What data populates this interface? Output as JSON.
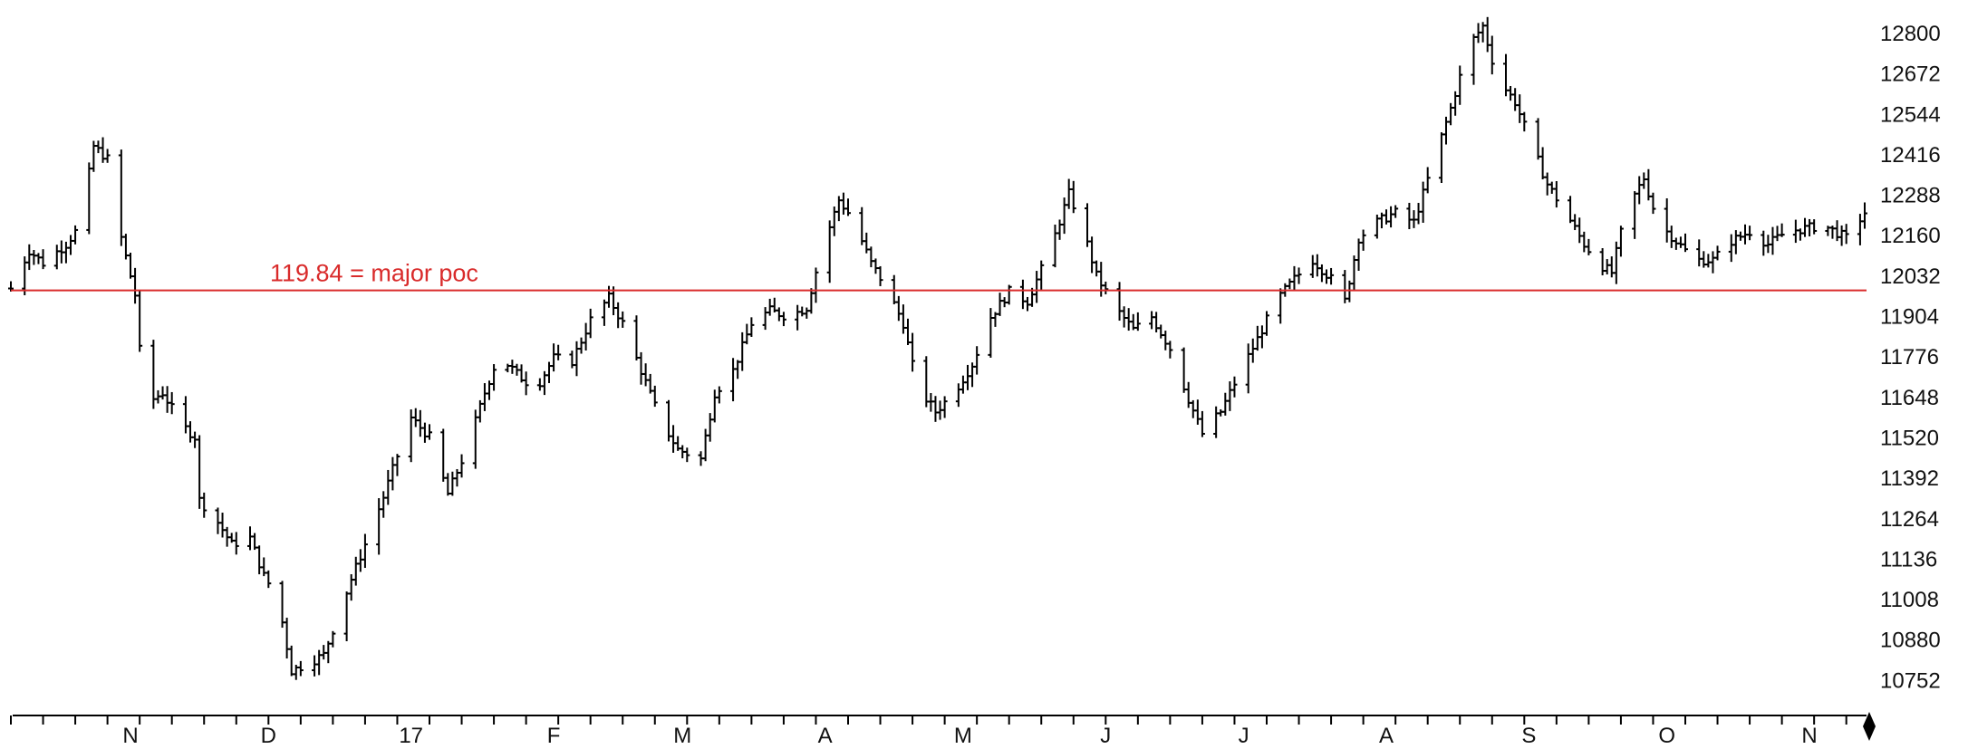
{
  "chart_data": {
    "type": "ohlc",
    "title": "",
    "xlabel": "",
    "ylabel": "",
    "ylim": [
      10690,
      12840
    ],
    "y_ticks": [
      12800,
      12672,
      12544,
      12416,
      12288,
      12160,
      12032,
      11904,
      11776,
      11648,
      11520,
      11392,
      11264,
      11136,
      11008,
      10880,
      10752
    ],
    "x_range": [
      "2016-10-21",
      "2017-11-28"
    ],
    "x_labels": [
      {
        "label": "N",
        "date": "2016-11-01"
      },
      {
        "label": "D",
        "date": "2016-12-01"
      },
      {
        "label": "17",
        "date": "2017-01-01"
      },
      {
        "label": "F",
        "date": "2017-02-01"
      },
      {
        "label": "M",
        "date": "2017-03-01"
      },
      {
        "label": "A",
        "date": "2017-04-01"
      },
      {
        "label": "M",
        "date": "2017-05-01"
      },
      {
        "label": "J",
        "date": "2017-06-01"
      },
      {
        "label": "J",
        "date": "2017-07-01"
      },
      {
        "label": "A",
        "date": "2017-08-01"
      },
      {
        "label": "S",
        "date": "2017-09-01"
      },
      {
        "label": "O",
        "date": "2017-10-01"
      },
      {
        "label": "N",
        "date": "2017-11-01"
      }
    ],
    "grid": false,
    "reference_line": {
      "value": 11984,
      "color": "#d92b2b",
      "label": "119.84 = major poc"
    },
    "bar_color": "#000000",
    "price_path": [
      [
        "2016-10-21",
        11990
      ],
      [
        "2016-10-25",
        12110
      ],
      [
        "2016-10-28",
        12070
      ],
      [
        "2016-11-02",
        12130
      ],
      [
        "2016-11-04",
        12170
      ],
      [
        "2016-11-06",
        12270
      ],
      [
        "2016-11-08",
        12440
      ],
      [
        "2016-11-11",
        12400
      ],
      [
        "2016-11-14",
        12150
      ],
      [
        "2016-11-17",
        11970
      ],
      [
        "2016-11-19",
        11620
      ],
      [
        "2016-11-23",
        11660
      ],
      [
        "2016-11-27",
        11560
      ],
      [
        "2016-11-30",
        11520
      ],
      [
        "2016-12-01",
        11320
      ],
      [
        "2016-12-05",
        11250
      ],
      [
        "2016-12-08",
        11180
      ],
      [
        "2016-12-12",
        11200
      ],
      [
        "2016-12-15",
        11080
      ],
      [
        "2016-12-18",
        11010
      ],
      [
        "2016-12-21",
        10780
      ],
      [
        "2016-12-24",
        10800
      ],
      [
        "2016-12-28",
        10830
      ],
      [
        "2017-01-03",
        11070
      ],
      [
        "2017-01-06",
        11180
      ],
      [
        "2017-01-10",
        11330
      ],
      [
        "2017-01-13",
        11460
      ],
      [
        "2017-01-16",
        11580
      ],
      [
        "2017-01-20",
        11520
      ],
      [
        "2017-01-24",
        11340
      ],
      [
        "2017-01-28",
        11480
      ],
      [
        "2017-02-01",
        11660
      ],
      [
        "2017-02-04",
        11780
      ],
      [
        "2017-02-08",
        11720
      ],
      [
        "2017-02-12",
        11670
      ],
      [
        "2017-02-16",
        11770
      ],
      [
        "2017-02-20",
        11760
      ],
      [
        "2017-02-24",
        11890
      ],
      [
        "2017-02-28",
        11960
      ],
      [
        "2017-03-03",
        11880
      ],
      [
        "2017-03-07",
        11730
      ],
      [
        "2017-03-11",
        11580
      ],
      [
        "2017-03-15",
        11480
      ],
      [
        "2017-03-20",
        11450
      ],
      [
        "2017-03-23",
        11660
      ],
      [
        "2017-03-27",
        11730
      ],
      [
        "2017-03-31",
        11880
      ],
      [
        "2017-04-04",
        11920
      ],
      [
        "2017-04-08",
        11900
      ],
      [
        "2017-04-12",
        11930
      ],
      [
        "2017-04-15",
        12100
      ],
      [
        "2017-04-19",
        12270
      ],
      [
        "2017-04-22",
        12210
      ],
      [
        "2017-04-26",
        12070
      ],
      [
        "2017-04-29",
        12000
      ],
      [
        "2017-05-03",
        11880
      ],
      [
        "2017-05-06",
        11680
      ],
      [
        "2017-05-10",
        11600
      ],
      [
        "2017-05-14",
        11660
      ],
      [
        "2017-05-18",
        11750
      ],
      [
        "2017-05-22",
        11900
      ],
      [
        "2017-05-26",
        11980
      ],
      [
        "2017-05-30",
        11950
      ],
      [
        "2017-06-02",
        12050
      ],
      [
        "2017-06-05",
        12160
      ],
      [
        "2017-06-08",
        12290
      ],
      [
        "2017-06-11",
        12180
      ],
      [
        "2017-06-14",
        12030
      ],
      [
        "2017-06-18",
        11930
      ],
      [
        "2017-06-22",
        11860
      ],
      [
        "2017-06-26",
        11900
      ],
      [
        "2017-06-30",
        11800
      ],
      [
        "2017-07-04",
        11640
      ],
      [
        "2017-07-07",
        11530
      ],
      [
        "2017-07-11",
        11600
      ],
      [
        "2017-07-15",
        11720
      ],
      [
        "2017-07-19",
        11830
      ],
      [
        "2017-07-23",
        11950
      ],
      [
        "2017-07-27",
        12020
      ],
      [
        "2017-07-31",
        12080
      ],
      [
        "2017-08-04",
        12020
      ],
      [
        "2017-08-07",
        11950
      ],
      [
        "2017-08-10",
        12150
      ],
      [
        "2017-08-14",
        12200
      ],
      [
        "2017-08-18",
        12230
      ],
      [
        "2017-08-22",
        12200
      ],
      [
        "2017-08-26",
        12380
      ],
      [
        "2017-08-30",
        12560
      ],
      [
        "2017-09-03",
        12760
      ],
      [
        "2017-09-06",
        12820
      ],
      [
        "2017-09-09",
        12660
      ],
      [
        "2017-09-13",
        12580
      ],
      [
        "2017-09-17",
        12430
      ],
      [
        "2017-09-20",
        12320
      ],
      [
        "2017-09-24",
        12230
      ],
      [
        "2017-09-28",
        12130
      ],
      [
        "2017-10-02",
        12060
      ],
      [
        "2017-10-04",
        12040
      ],
      [
        "2017-10-07",
        12230
      ],
      [
        "2017-10-11",
        12340
      ],
      [
        "2017-10-14",
        12200
      ],
      [
        "2017-10-18",
        12140
      ],
      [
        "2017-10-22",
        12080
      ],
      [
        "2017-10-26",
        12080
      ],
      [
        "2017-10-30",
        12140
      ],
      [
        "2017-11-03",
        12170
      ],
      [
        "2017-11-07",
        12130
      ],
      [
        "2017-11-11",
        12170
      ],
      [
        "2017-11-15",
        12180
      ],
      [
        "2017-11-19",
        12190
      ],
      [
        "2017-11-24",
        12150
      ],
      [
        "2017-11-28",
        12230
      ]
    ]
  }
}
